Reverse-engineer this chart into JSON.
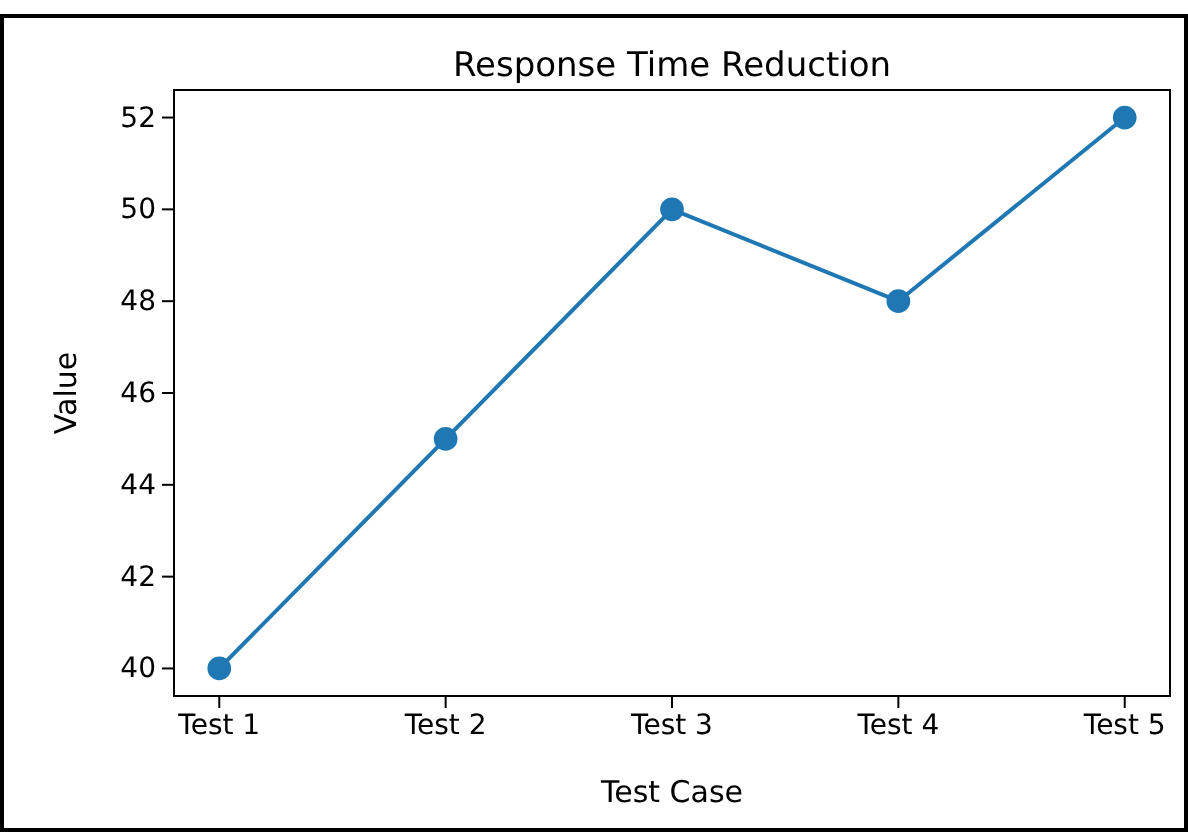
{
  "chart_data": {
    "type": "line",
    "title": "Response Time Reduction",
    "xlabel": "Test Case",
    "ylabel": "Value",
    "categories": [
      "Test 1",
      "Test 2",
      "Test 3",
      "Test 4",
      "Test 5"
    ],
    "series": [
      {
        "color": "#1f77b4",
        "values": [
          40,
          45,
          50,
          48,
          52
        ]
      }
    ],
    "ylim": [
      39.4,
      52.6
    ],
    "yticks": [
      40,
      42,
      44,
      46,
      48,
      50,
      52
    ],
    "marker": "circle"
  }
}
